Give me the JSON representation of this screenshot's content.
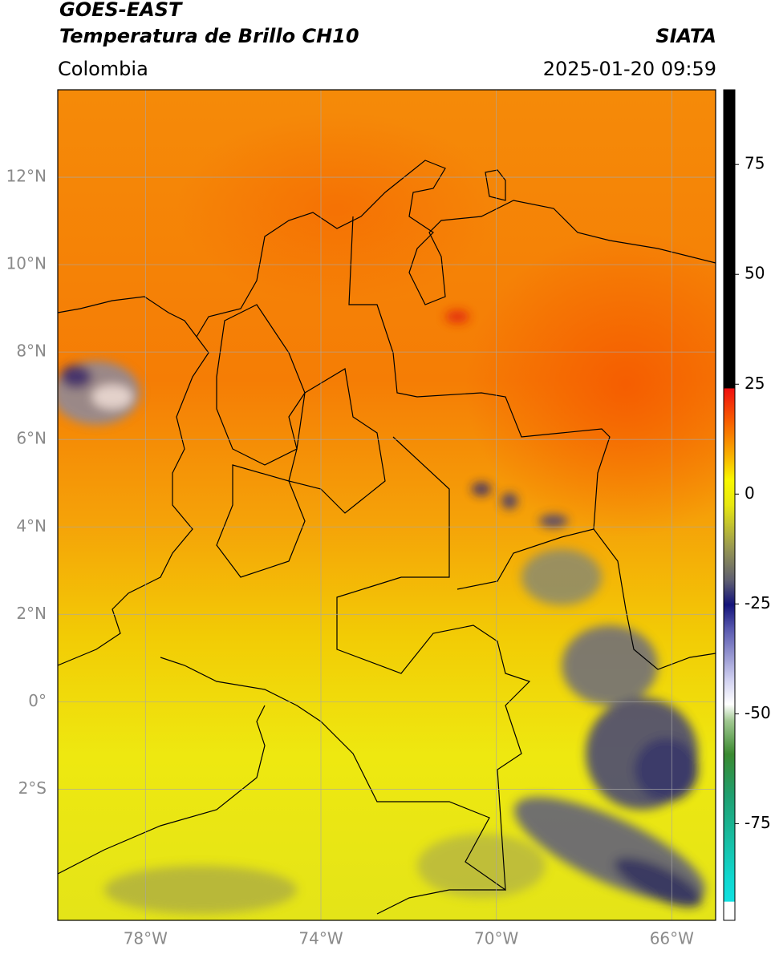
{
  "header": {
    "title": "GOES-EAST",
    "product": "Temperatura de Brillo CH10",
    "source": "SIATA",
    "region": "Colombia",
    "datetime": "2025-01-20 09:59"
  },
  "map": {
    "xlim": [
      -80,
      -65
    ],
    "ylim": [
      -5,
      14
    ],
    "xticks": [
      {
        "value": -78,
        "label": "78°W"
      },
      {
        "value": -74,
        "label": "74°W"
      },
      {
        "value": -70,
        "label": "70°W"
      },
      {
        "value": -66,
        "label": "66°W"
      }
    ],
    "yticks": [
      {
        "value": 12,
        "label": "12°N"
      },
      {
        "value": 10,
        "label": "10°N"
      },
      {
        "value": 8,
        "label": "8°N"
      },
      {
        "value": 6,
        "label": "6°N"
      },
      {
        "value": 4,
        "label": "4°N"
      },
      {
        "value": 2,
        "label": "2°N"
      },
      {
        "value": 0,
        "label": "0°"
      },
      {
        "value": -2,
        "label": "2°S"
      }
    ],
    "grid": true
  },
  "colorbar": {
    "ylim": [
      -97,
      92
    ],
    "yticks": [
      75,
      50,
      25,
      0,
      -25,
      -50,
      -75
    ]
  }
}
